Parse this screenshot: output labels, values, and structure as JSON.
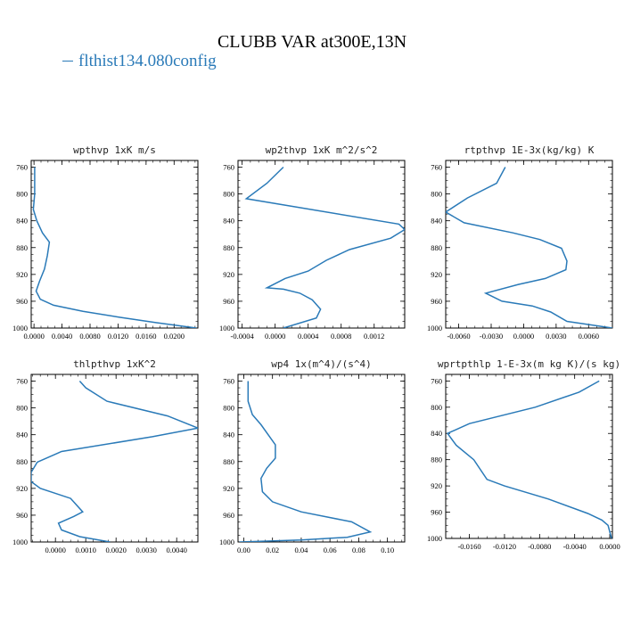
{
  "title": "CLUBB VAR at300E,13N",
  "legend": {
    "label": "flthist134.080config",
    "color": "#2a7ab8"
  },
  "chart_data": [
    {
      "type": "line",
      "title": "wpthvp  1xK m/s",
      "xlim": [
        -0.0004,
        0.0234
      ],
      "ylim": [
        1000,
        750
      ],
      "xticks": [
        0.0,
        0.004,
        0.008,
        0.012,
        0.016,
        0.02
      ],
      "xtick_labels": [
        "0.0000",
        "0.0040",
        "0.0080",
        "0.0120",
        "0.0160",
        "0.0200"
      ],
      "yticks": [
        760,
        800,
        840,
        880,
        920,
        960,
        1000
      ],
      "series": [
        {
          "color": "#2a7ab8",
          "x": [
            0.0001,
            0.0001,
            -0.0001,
            0.0004,
            0.0012,
            0.0022,
            0.0019,
            0.0015,
            0.0008,
            0.0003,
            0.0009,
            0.0028,
            0.007,
            0.0123,
            0.0175,
            0.0232
          ],
          "y": [
            760,
            800,
            823,
            840,
            858,
            872,
            892,
            912,
            930,
            945,
            957,
            966,
            975,
            984,
            992,
            1000
          ]
        }
      ]
    },
    {
      "type": "line",
      "title": "wp2thvp  1xK m^2/s^2",
      "xlim": [
        -0.00045,
        0.00157
      ],
      "ylim": [
        1000,
        750
      ],
      "xticks": [
        -0.0004,
        0.0,
        0.0004,
        0.0008,
        0.0012
      ],
      "xtick_labels": [
        "-0.0004",
        "0.0000",
        "0.0004",
        "0.0008",
        "0.0012"
      ],
      "yticks": [
        760,
        800,
        840,
        880,
        920,
        960,
        1000
      ],
      "series": [
        {
          "color": "#2a7ab8",
          "x": [
            0.0001,
            -0.0001,
            -0.00035,
            0.0015,
            0.00157,
            0.0014,
            0.0009,
            0.00062,
            0.0004,
            0.00012,
            -0.0001,
            0.0001,
            0.0003,
            0.00045,
            0.00055,
            0.0005,
            0.0001
          ],
          "y": [
            760,
            784,
            807,
            845,
            853,
            866,
            883,
            899,
            915,
            926,
            940,
            942,
            948,
            958,
            972,
            985,
            1000
          ]
        }
      ]
    },
    {
      "type": "line",
      "title": "rtpthvp  1E-3x(kg/kg) K",
      "xlim": [
        -0.0072,
        0.0082
      ],
      "ylim": [
        1000,
        750
      ],
      "xticks": [
        -0.006,
        -0.003,
        0.0,
        0.003,
        0.006
      ],
      "xtick_labels": [
        "-0.0060",
        "-0.0030",
        "0.0000",
        "0.0030",
        "0.0060"
      ],
      "yticks": [
        760,
        800,
        840,
        880,
        920,
        960,
        1000
      ],
      "series": [
        {
          "color": "#2a7ab8",
          "x": [
            -0.0017,
            -0.0025,
            -0.0052,
            -0.0072,
            -0.0055,
            -0.001,
            0.0015,
            0.0035,
            0.004,
            0.0039,
            0.002,
            -0.0005,
            -0.0035,
            -0.002,
            0.0008,
            0.0025,
            0.004,
            0.0082
          ],
          "y": [
            760,
            784,
            806,
            827,
            843,
            858,
            868,
            881,
            900,
            913,
            926,
            935,
            948,
            960,
            967,
            976,
            990,
            1000
          ]
        }
      ]
    },
    {
      "type": "line",
      "title": "thlpthvp  1xK^2",
      "xlim": [
        -0.0008,
        0.0047
      ],
      "ylim": [
        1000,
        750
      ],
      "xticks": [
        0.0,
        0.001,
        0.002,
        0.003,
        0.004
      ],
      "xtick_labels": [
        "0.0000",
        "0.0010",
        "0.0020",
        "0.0030",
        "0.0040"
      ],
      "yticks": [
        760,
        800,
        840,
        880,
        920,
        960,
        1000
      ],
      "series": [
        {
          "color": "#2a7ab8",
          "x": [
            0.0008,
            0.001,
            0.0017,
            0.0037,
            0.0047,
            0.0032,
            0.0002,
            -0.0006,
            -0.0008,
            -0.0008,
            -0.0005,
            0.0005,
            0.0009,
            0.0006,
            0.0001,
            0.0002,
            0.0008,
            0.0018
          ],
          "y": [
            760,
            770,
            790,
            812,
            830,
            843,
            865,
            881,
            896,
            910,
            920,
            935,
            955,
            962,
            972,
            982,
            992,
            1000
          ]
        }
      ]
    },
    {
      "type": "line",
      "title": "wp4  1x(m^4)/(s^4)",
      "xlim": [
        -0.004,
        0.112
      ],
      "ylim": [
        1000,
        750
      ],
      "xticks": [
        0.0,
        0.02,
        0.04,
        0.06,
        0.08,
        0.1
      ],
      "xtick_labels": [
        "0.00",
        "0.02",
        "0.04",
        "0.06",
        "0.08",
        "0.10"
      ],
      "yticks": [
        760,
        800,
        840,
        880,
        920,
        960,
        1000
      ],
      "series": [
        {
          "color": "#2a7ab8",
          "x": [
            0.003,
            0.003,
            0.006,
            0.012,
            0.022,
            0.022,
            0.016,
            0.012,
            0.013,
            0.02,
            0.04,
            0.075,
            0.088,
            0.072,
            0.04,
            -0.003
          ],
          "y": [
            760,
            790,
            810,
            825,
            855,
            875,
            890,
            905,
            925,
            940,
            955,
            970,
            985,
            993,
            997,
            1000
          ]
        }
      ]
    },
    {
      "type": "line",
      "title": "wprtpthlp  1-E-3x(m kg K)/(s kg)",
      "xlim": [
        -0.0187,
        0.0003
      ],
      "ylim": [
        1000,
        750
      ],
      "xticks": [
        -0.016,
        -0.012,
        -0.008,
        -0.004,
        0.0
      ],
      "xtick_labels": [
        "-0.0160",
        "-0.0120",
        "-0.0080",
        "-0.0040",
        "0.0000"
      ],
      "yticks": [
        760,
        800,
        840,
        880,
        920,
        960,
        1000
      ],
      "series": [
        {
          "color": "#2a7ab8",
          "x": [
            -0.0012,
            -0.0035,
            -0.0085,
            -0.016,
            -0.0185,
            -0.0175,
            -0.0155,
            -0.014,
            -0.012,
            -0.007,
            -0.0025,
            -0.0009,
            -0.0002,
            0.0002
          ],
          "y": [
            760,
            777,
            800,
            825,
            840,
            858,
            880,
            910,
            920,
            940,
            962,
            972,
            980,
            1000
          ]
        }
      ]
    }
  ]
}
